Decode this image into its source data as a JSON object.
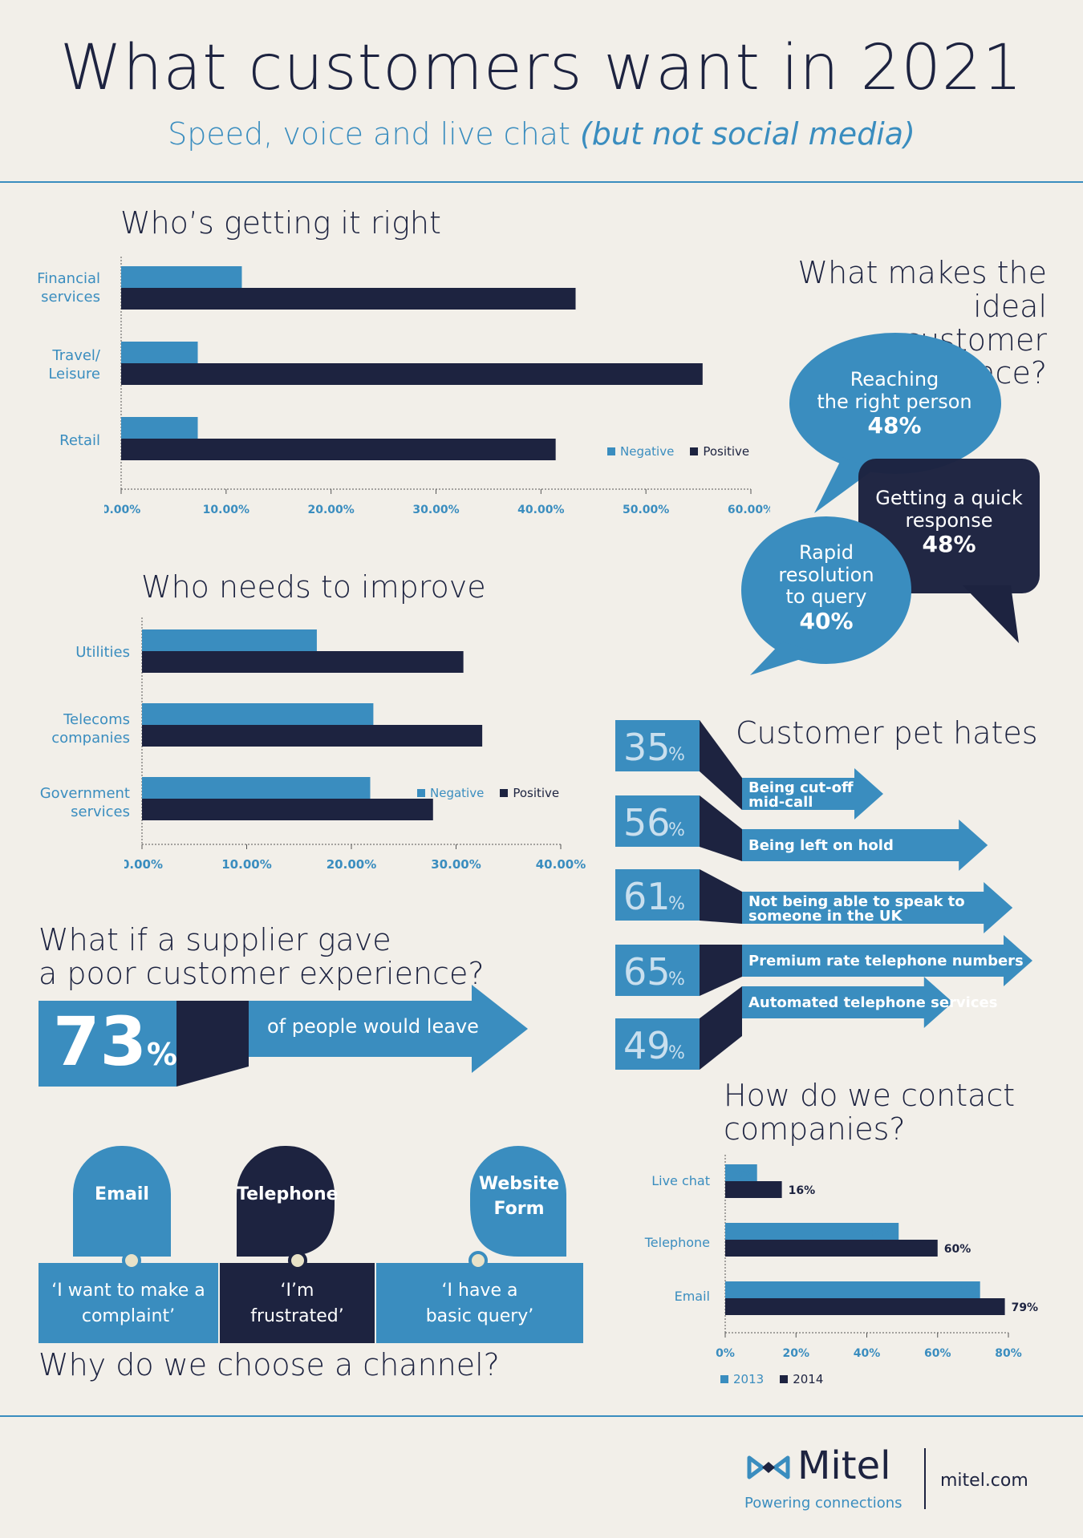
{
  "header": {
    "title": "What customers want in 2021",
    "subtitle_main": "Speed, voice and live chat ",
    "subtitle_italic": "(but not social media)"
  },
  "colors": {
    "negative": "#3a8dbf",
    "positive": "#1d2340",
    "background": "#f2efe9"
  },
  "chart_data": [
    {
      "type": "bar",
      "title": "Who’s getting it right",
      "categories": [
        "Financial services",
        "Travel/ Leisure",
        "Retail"
      ],
      "series": [
        {
          "name": "Negative",
          "values": [
            0.115,
            0.073,
            0.073
          ]
        },
        {
          "name": "Positive",
          "values": [
            0.433,
            0.554,
            0.414
          ]
        }
      ],
      "xlim": [
        0,
        0.6
      ],
      "ticks": [
        "0.00%",
        "10.00%",
        "20.00%",
        "30.00%",
        "40.00%",
        "50.00%",
        "60.00%"
      ],
      "legend": "bottom-right"
    },
    {
      "type": "bar",
      "title": "Who needs to improve",
      "categories": [
        "Utilities",
        "Telecoms companies",
        "Government services"
      ],
      "series": [
        {
          "name": "Negative",
          "values": [
            0.167,
            0.221,
            0.218
          ]
        },
        {
          "name": "Positive",
          "values": [
            0.307,
            0.325,
            0.278
          ]
        }
      ],
      "xlim": [
        0,
        0.4
      ],
      "ticks": [
        "0.00%",
        "10.00%",
        "20.00%",
        "30.00%",
        "40.00%"
      ],
      "legend": "bottom-right"
    },
    {
      "type": "bar",
      "title": "How do we contact companies?",
      "categories": [
        "Live chat",
        "Telephone",
        "Email"
      ],
      "series": [
        {
          "name": "2013",
          "values": [
            9,
            49,
            72
          ]
        },
        {
          "name": "2014",
          "values": [
            16,
            60,
            79
          ]
        }
      ],
      "value_labels": {
        "2013": [
          "9%",
          "49%",
          "72%"
        ],
        "2014": [
          "16%",
          "60%",
          "79%"
        ]
      },
      "xlim": [
        0,
        80
      ],
      "ticks": [
        "0%",
        "20%",
        "40%",
        "60%",
        "80%"
      ],
      "legend": "bottom-left"
    }
  ],
  "ideal": {
    "title_line1": "What makes the ideal",
    "title_line2": "customer experience?",
    "bubbles": [
      {
        "line1": "Reaching",
        "line2": "the right person",
        "pct": "48%"
      },
      {
        "line1": "Getting a quick",
        "line2": "response",
        "pct": "48%"
      },
      {
        "line1": "Rapid",
        "line2": "resolution",
        "line3": "to query",
        "pct": "40%"
      }
    ]
  },
  "pet_hates": {
    "title": "Customer pet hates",
    "items": [
      {
        "pct": "35",
        "label_line1": "Being cut-off",
        "label_line2": "mid-call",
        "value": 35
      },
      {
        "pct": "56",
        "label_line1": "Being left on hold",
        "label_line2": "",
        "value": 56
      },
      {
        "pct": "61",
        "label_line1": "Not being able to speak to",
        "label_line2": "someone in the UK",
        "value": 61
      },
      {
        "pct": "65",
        "label_line1": "Premium rate telephone numbers",
        "label_line2": "",
        "value": 65
      },
      {
        "pct": "49",
        "label_line1": "Automated telephone services",
        "label_line2": "",
        "value": 49
      }
    ],
    "pct_suffix": "%"
  },
  "supplier": {
    "title_line1": "What if a supplier gave",
    "title_line2": "a poor customer experience?",
    "big_number": "73",
    "pct_sign": "%",
    "caption": "of people would leave"
  },
  "channel": {
    "title": "Why do we choose a channel?",
    "items": [
      {
        "name": "Email",
        "reason_line1": "‘I want to make a",
        "reason_line2": "complaint’"
      },
      {
        "name": "Telephone",
        "reason_line1": "‘I’m",
        "reason_line2": "frustrated’"
      },
      {
        "name_line1": "Website",
        "name_line2": "Form",
        "reason_line1": "‘I have a",
        "reason_line2": "basic query’"
      }
    ]
  },
  "footer": {
    "brand": "Mitel",
    "tagline": "Powering connections",
    "url": "mitel.com"
  }
}
